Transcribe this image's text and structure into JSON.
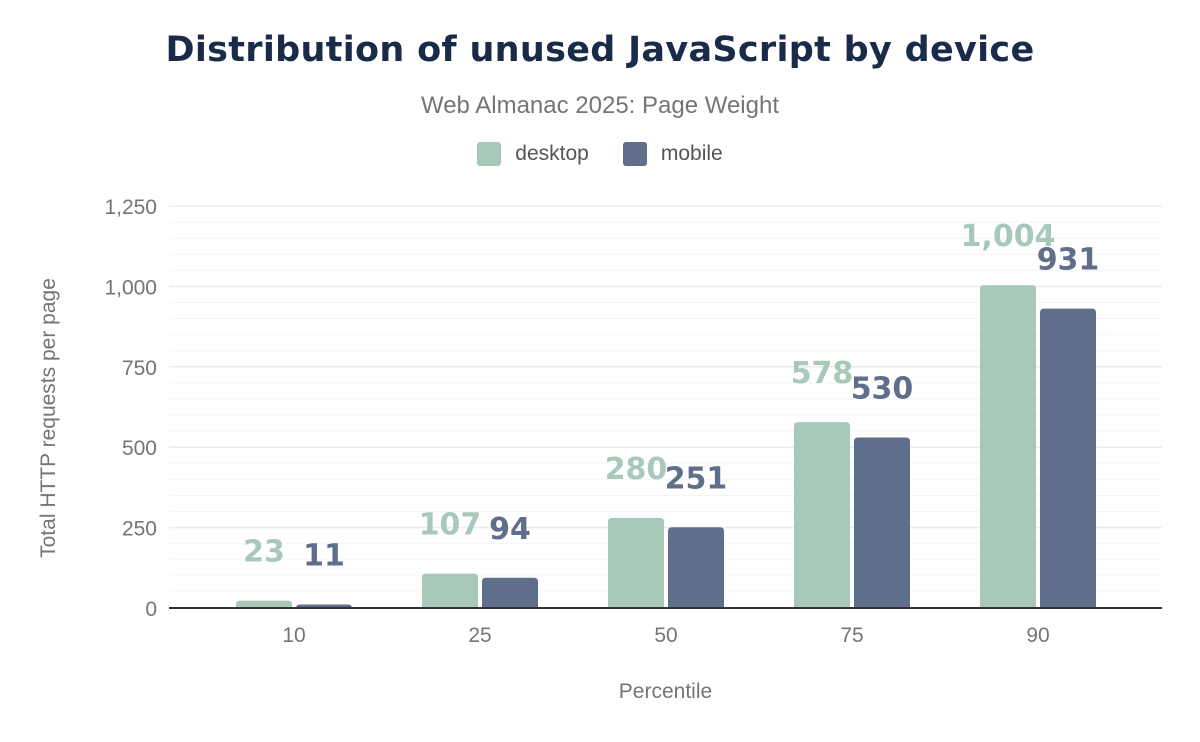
{
  "title": "Distribution of unused JavaScript by device",
  "subtitle": "Web Almanac 2025: Page Weight",
  "colors": {
    "desktop": "#a8c9b9",
    "mobile": "#5f6e8a",
    "title": "#1a2b49"
  },
  "chart_data": {
    "type": "bar",
    "title": "Distribution of unused JavaScript by device",
    "subtitle": "Web Almanac 2025: Page Weight",
    "xlabel": "Percentile",
    "ylabel": "Total HTTP requests per page",
    "categories": [
      "10",
      "25",
      "50",
      "75",
      "90"
    ],
    "series": [
      {
        "name": "desktop",
        "values": [
          23,
          107,
          280,
          578,
          1004
        ],
        "labels": [
          "23",
          "107",
          "280",
          "578",
          "1,004"
        ]
      },
      {
        "name": "mobile",
        "values": [
          11,
          94,
          251,
          530,
          931
        ],
        "labels": [
          "11",
          "94",
          "251",
          "530",
          "931"
        ]
      }
    ],
    "ylim": [
      0,
      1250
    ],
    "yticks": [
      0,
      250,
      500,
      750,
      1000,
      1250
    ],
    "ytick_labels": [
      "0",
      "250",
      "500",
      "750",
      "1,000",
      "1,250"
    ],
    "minor_grid_step": 50,
    "grid": true,
    "legend": "top"
  }
}
